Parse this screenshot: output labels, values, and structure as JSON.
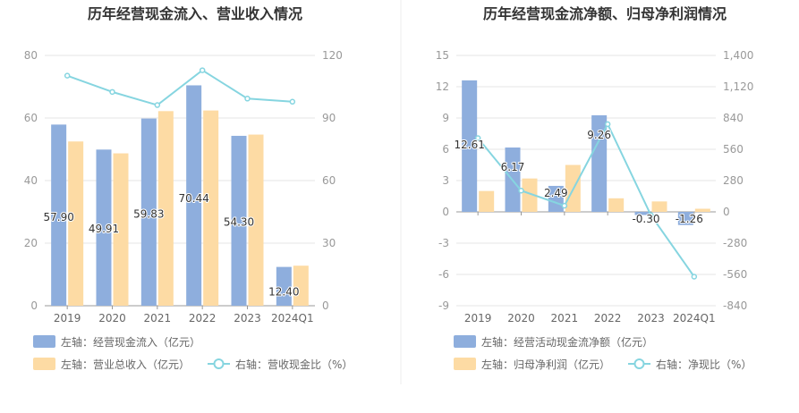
{
  "colors": {
    "bar_blue": "#8eaedd",
    "bar_orange": "#fddba4",
    "line": "#86d5e0",
    "grid": "#e4e4e4",
    "divider": "#eeeeee"
  },
  "chart_data": [
    {
      "type": "bar",
      "title": "历年经营现金流入、营业收入情况",
      "categories": [
        "2019",
        "2020",
        "2021",
        "2022",
        "2023",
        "2024Q1"
      ],
      "left_axis": {
        "ylim": [
          0,
          80
        ],
        "ticks": [
          "0",
          "20",
          "40",
          "60",
          "80"
        ]
      },
      "right_axis": {
        "ylim": [
          0,
          120
        ],
        "ticks": [
          "0",
          "30",
          "60",
          "90",
          "120"
        ]
      },
      "series": [
        {
          "name": "左轴：经营现金流入（亿元）",
          "kind": "bar",
          "axis": "left",
          "color": "#8eaedd",
          "values": [
            57.9,
            49.91,
            59.83,
            70.44,
            54.3,
            12.4
          ],
          "labels": [
            "57.90",
            "49.91",
            "59.83",
            "70.44",
            "54.30",
            "12.40"
          ]
        },
        {
          "name": "左轴：营业总收入（亿元）",
          "kind": "bar",
          "axis": "left",
          "color": "#fddba4",
          "values": [
            52.5,
            48.7,
            62.2,
            62.4,
            54.7,
            12.8
          ]
        },
        {
          "name": "右轴：营收现金比（%）",
          "kind": "line",
          "axis": "right",
          "color": "#86d5e0",
          "values": [
            110.3,
            102.5,
            96.2,
            112.9,
            99.3,
            97.8
          ]
        }
      ],
      "legend": [
        "左轴：经营现金流入（亿元）",
        "左轴：营业总收入（亿元）",
        "右轴：营收现金比（%）"
      ]
    },
    {
      "type": "bar",
      "title": "历年经营现金流净额、归母净利润情况",
      "categories": [
        "2019",
        "2020",
        "2021",
        "2022",
        "2023",
        "2024Q1"
      ],
      "left_axis": {
        "ylim": [
          -9,
          15
        ],
        "ticks": [
          "-9",
          "-6",
          "-3",
          "0",
          "3",
          "6",
          "9",
          "12",
          "15"
        ]
      },
      "right_axis": {
        "ylim": [
          -840,
          1400
        ],
        "ticks": [
          "-840",
          "-560",
          "-280",
          "0",
          "280",
          "560",
          "840",
          "1,120",
          "1,400"
        ]
      },
      "series": [
        {
          "name": "左轴：经营活动现金流净额（亿元）",
          "kind": "bar",
          "axis": "left",
          "color": "#8eaedd",
          "values": [
            12.61,
            6.17,
            2.49,
            9.26,
            -0.3,
            -1.26
          ],
          "labels": [
            "12.61",
            "6.17",
            "2.49",
            "9.26",
            "-0.30",
            "-1.26"
          ]
        },
        {
          "name": "左轴：归母净利润（亿元）",
          "kind": "bar",
          "axis": "left",
          "color": "#fddba4",
          "values": [
            2.0,
            3.2,
            4.5,
            1.3,
            1.0,
            0.3
          ]
        },
        {
          "name": "右轴：净现比（%）",
          "kind": "line",
          "axis": "right",
          "color": "#86d5e0",
          "values": [
            660,
            190,
            55,
            785,
            -30,
            -580
          ]
        }
      ],
      "legend": [
        "左轴：经营活动现金流净额（亿元）",
        "左轴：归母净利润（亿元）",
        "右轴：净现比（%）"
      ]
    }
  ]
}
